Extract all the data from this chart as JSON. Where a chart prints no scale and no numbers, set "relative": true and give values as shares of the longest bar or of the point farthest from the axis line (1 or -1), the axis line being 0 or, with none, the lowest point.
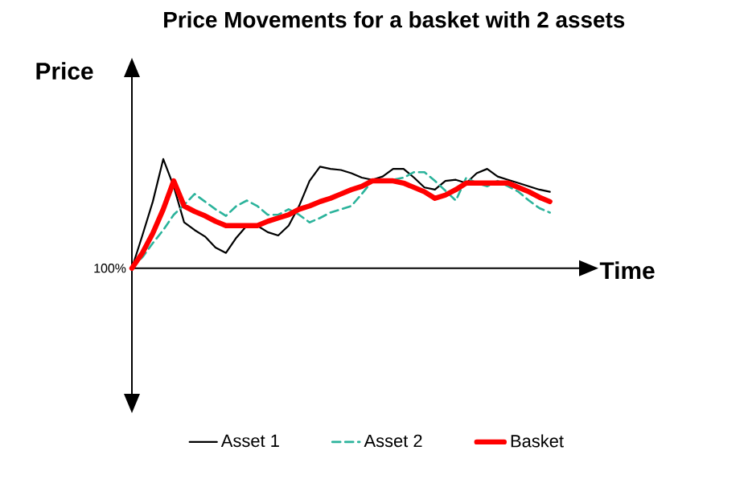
{
  "chart_data": {
    "type": "line",
    "title": "Price Movements for a basket with 2 assets",
    "xlabel": "Time",
    "ylabel": "Price",
    "relative": true,
    "legend": "bottom",
    "marker": "none",
    "annotations": [
      "100%"
    ],
    "categories": [
      null,
      null,
      null,
      null,
      null,
      null,
      null,
      null,
      null,
      null,
      null,
      null,
      null,
      null,
      null,
      null,
      null,
      null,
      null,
      null,
      null,
      null,
      null,
      null,
      null,
      null,
      null,
      null,
      null,
      null,
      null,
      null,
      null,
      null,
      null,
      null,
      null,
      null,
      null,
      null,
      null
    ],
    "series": [
      {
        "name": "Asset 1",
        "color": "#000000",
        "line_style": "solid",
        "values": [
          0,
          0.3,
          0.61,
          1,
          0.75,
          0.42,
          0.35,
          0.29,
          0.19,
          0.14,
          0.28,
          0.39,
          0.39,
          0.33,
          0.3,
          0.39,
          0.57,
          0.8,
          0.93,
          0.91,
          0.9,
          0.87,
          0.83,
          0.81,
          0.84,
          0.91,
          0.91,
          0.83,
          0.74,
          0.72,
          0.8,
          0.81,
          0.78,
          0.87,
          0.91,
          0.84,
          0.81,
          0.78,
          0.75,
          0.72,
          0.7
        ]
      },
      {
        "name": "Asset 2",
        "color": "#2bb39b",
        "line_style": "dashed",
        "values": [
          0,
          0.1,
          0.23,
          0.35,
          0.49,
          0.58,
          0.68,
          0.61,
          0.54,
          0.48,
          0.57,
          0.62,
          0.57,
          0.49,
          0.49,
          0.54,
          0.49,
          0.42,
          0.46,
          0.51,
          0.54,
          0.57,
          0.68,
          0.8,
          0.8,
          0.81,
          0.83,
          0.88,
          0.88,
          0.8,
          0.71,
          0.62,
          0.83,
          0.78,
          0.75,
          0.8,
          0.75,
          0.7,
          0.62,
          0.55,
          0.51
        ]
      },
      {
        "name": "Basket",
        "color": "#ff0000",
        "line_style": "solid",
        "values": [
          0,
          0.14,
          0.32,
          0.54,
          0.8,
          0.57,
          0.52,
          0.48,
          0.43,
          0.39,
          0.39,
          0.39,
          0.39,
          0.43,
          0.46,
          0.49,
          0.54,
          0.57,
          0.61,
          0.64,
          0.68,
          0.72,
          0.75,
          0.8,
          0.8,
          0.8,
          0.78,
          0.74,
          0.7,
          0.64,
          0.67,
          0.72,
          0.78,
          0.78,
          0.78,
          0.78,
          0.78,
          0.74,
          0.7,
          0.65,
          0.61
        ]
      }
    ]
  }
}
